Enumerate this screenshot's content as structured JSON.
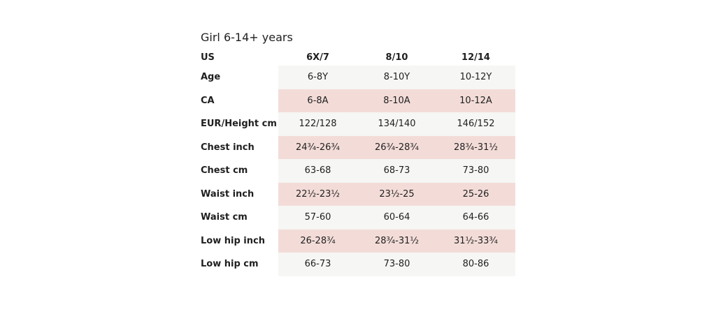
{
  "title": "Girl 6-14+ years",
  "header": {
    "label": "US",
    "columns": [
      "6X/7",
      "8/10",
      "12/14"
    ]
  },
  "rows": [
    {
      "label": "Age",
      "values": [
        "6-8Y",
        "8-10Y",
        "10-12Y"
      ]
    },
    {
      "label": "CA",
      "values": [
        "6-8A",
        "8-10A",
        "10-12A"
      ]
    },
    {
      "label": "EUR/Height cm",
      "values": [
        "122/128",
        "134/140",
        "146/152"
      ]
    },
    {
      "label": "Chest inch",
      "values": [
        "24¾-26¾",
        "26¾-28¾",
        "28¾-31½"
      ]
    },
    {
      "label": "Chest cm",
      "values": [
        "63-68",
        "68-73",
        "73-80"
      ]
    },
    {
      "label": "Waist inch",
      "values": [
        "22½-23½",
        "23½-25",
        "25-26"
      ]
    },
    {
      "label": "Waist cm",
      "values": [
        "57-60",
        "60-64",
        "64-66"
      ]
    },
    {
      "label": "Low hip inch",
      "values": [
        "26-28¾",
        "28¾-31½",
        "31½-33¾"
      ]
    },
    {
      "label": "Low hip cm",
      "values": [
        "66-73",
        "73-80",
        "80-86"
      ]
    }
  ],
  "colors": {
    "band_light": "#f6f6f4",
    "band_pink": "#f3dcd8",
    "text": "#1f1f1f"
  }
}
